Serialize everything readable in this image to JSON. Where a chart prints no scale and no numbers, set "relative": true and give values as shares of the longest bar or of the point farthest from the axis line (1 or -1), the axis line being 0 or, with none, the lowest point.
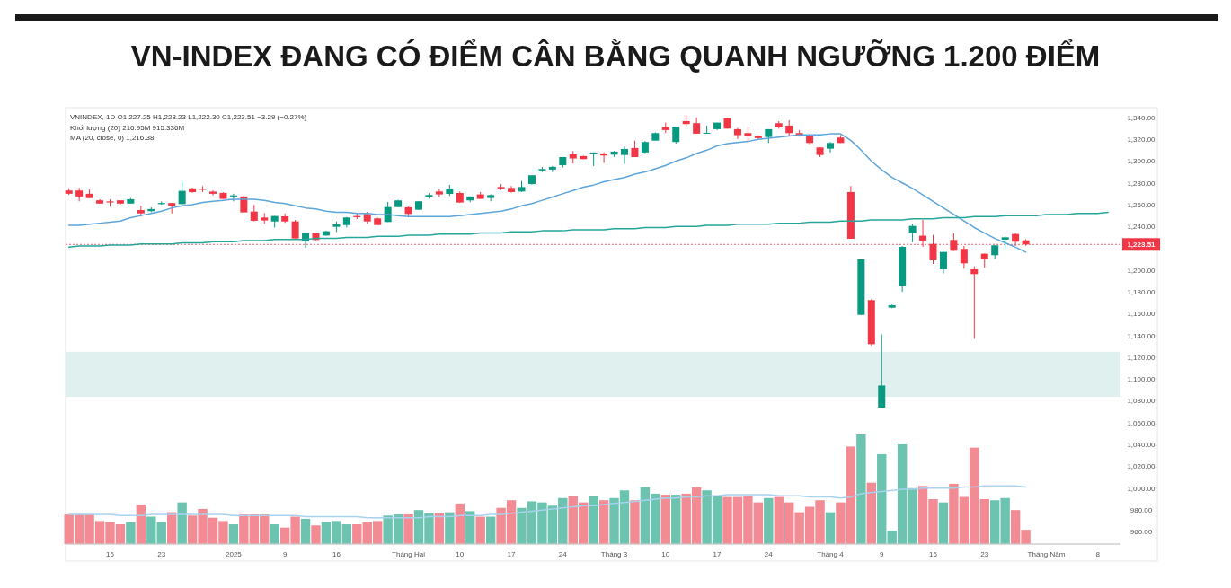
{
  "chart_data": [
    {
      "type": "candlestick",
      "title": "VN-INDEX ĐANG CÓ ĐIỂM CÂN BẰNG QUANH NGƯỠNG 1.200 ĐIỂM",
      "annotations": [
        "VNINDEX, 1D O1,227.25 H1,228.23 L1,222.30 C1,223.51 −3.29 (−0.27%)",
        "Khối lượng (20) 216.95M 915.336M",
        "MA (20, close, 0) 1,216.38"
      ],
      "categories": [
        null,
        null,
        null,
        null,
        "16",
        null,
        null,
        null,
        null,
        "23",
        null,
        null,
        null,
        null,
        null,
        null,
        "2025",
        null,
        null,
        null,
        null,
        "9",
        null,
        null,
        null,
        null,
        "16",
        null,
        null,
        null,
        null,
        null,
        null,
        "Tháng Hai",
        null,
        null,
        null,
        null,
        "10",
        null,
        null,
        null,
        null,
        "17",
        null,
        null,
        null,
        null,
        "24",
        null,
        null,
        null,
        null,
        "Tháng 3",
        null,
        null,
        null,
        null,
        "10",
        null,
        null,
        null,
        null,
        "17",
        null,
        null,
        null,
        null,
        "24",
        null,
        null,
        null,
        null,
        null,
        "Tháng 4",
        null,
        null,
        null,
        null,
        "9",
        null,
        null,
        null,
        null,
        "16",
        null,
        null,
        null,
        null,
        "23",
        null,
        null,
        null,
        null,
        null,
        "Tháng Năm",
        null,
        null,
        null,
        null,
        "8",
        null
      ],
      "ohlc": [
        [
          1273,
          1275,
          1269,
          1270
        ],
        [
          1273,
          1275.5,
          1263,
          1267.5
        ],
        [
          1270,
          1274,
          1266,
          1266
        ],
        [
          1264,
          1265,
          1261,
          1261
        ],
        [
          1263,
          1265,
          1258,
          1262
        ],
        [
          1264,
          1264,
          1260,
          1261
        ],
        [
          1261,
          1266,
          1261,
          1265
        ],
        [
          1255,
          1259,
          1249,
          1252
        ],
        [
          1254,
          1257.5,
          1253,
          1256
        ],
        [
          1260.5,
          1263,
          1260,
          1261.5
        ],
        [
          1261.5,
          1261.5,
          1252,
          1259
        ],
        [
          1260.5,
          1281.7,
          1260.5,
          1272.7
        ],
        [
          1275,
          1275.7,
          1271,
          1271.5
        ],
        [
          1274.5,
          1277,
          1271.6,
          1273.8
        ],
        [
          1272,
          1273,
          1268.5,
          1270
        ],
        [
          1270.8,
          1271.3,
          1265.3,
          1265.3
        ],
        [
          1267.5,
          1270,
          1263,
          1268.5
        ],
        [
          1267.5,
          1268.5,
          1252.9,
          1252.9
        ],
        [
          1253.7,
          1259.8,
          1244.7,
          1245.2
        ],
        [
          1248.2,
          1252.3,
          1242.5,
          1245.5
        ],
        [
          1244.6,
          1249.6,
          1239,
          1249.6
        ],
        [
          1249.3,
          1252,
          1243.3,
          1244.6
        ],
        [
          1244.6,
          1246,
          1229,
          1229
        ],
        [
          1226.2,
          1234.5,
          1220.5,
          1234.5
        ],
        [
          1233.7,
          1234.2,
          1227.3,
          1227.6
        ],
        [
          1231.7,
          1236.1,
          1231.5,
          1235.6
        ],
        [
          1239.7,
          1244.6,
          1235,
          1241.9
        ],
        [
          1241.3,
          1248.8,
          1239,
          1248.2
        ],
        [
          1249.6,
          1252.3,
          1246.8,
          1248.5
        ],
        [
          1251.5,
          1253.4,
          1242.5,
          1244.6
        ],
        [
          1247.4,
          1248,
          1241.3,
          1241.3
        ],
        [
          1244.1,
          1262.5,
          1244.1,
          1257.8
        ],
        [
          1257.8,
          1264.4,
          1257.6,
          1263.9
        ],
        [
          1257.6,
          1258.4,
          1248.8,
          1251.5
        ],
        [
          1255.4,
          1263.3,
          1255.1,
          1263.1
        ],
        [
          1267.2,
          1270.5,
          1265.5,
          1268.8
        ],
        [
          1272.1,
          1274.9,
          1267.2,
          1269.4
        ],
        [
          1269.9,
          1278.2,
          1268,
          1274.9
        ],
        [
          1270.7,
          1272.1,
          1261.7,
          1262
        ],
        [
          1263.9,
          1267.5,
          1262.2,
          1267.5
        ],
        [
          1269.4,
          1271.6,
          1265.3,
          1265.3
        ],
        [
          1266.1,
          1269.4,
          1263.1,
          1268.8
        ],
        [
          1276.2,
          1279,
          1273.5,
          1274.9
        ],
        [
          1275.4,
          1277.1,
          1271,
          1271.6
        ],
        [
          1272.1,
          1281.7,
          1271.6,
          1276.2
        ],
        [
          1279,
          1287,
          1278.2,
          1287
        ],
        [
          1291.4,
          1294.7,
          1290,
          1292.7
        ],
        [
          1292.2,
          1295.5,
          1290,
          1294.7
        ],
        [
          1296.3,
          1303.7,
          1294,
          1303.7
        ],
        [
          1306.5,
          1309.2,
          1297.7,
          1302.4
        ],
        [
          1304.6,
          1305.1,
          1301.8,
          1301.8
        ],
        [
          1306.5,
          1307.9,
          1295.5,
          1307.9
        ],
        [
          1307,
          1307.9,
          1298.2,
          1305.1
        ],
        [
          1305.9,
          1309.2,
          1303.7,
          1308.7
        ],
        [
          1305.6,
          1313.3,
          1297.4,
          1311.1
        ],
        [
          1312,
          1318.8,
          1303.7,
          1303.7
        ],
        [
          1307.9,
          1318.3,
          1307.3,
          1317.5
        ],
        [
          1318.8,
          1326.3,
          1318.8,
          1325.7
        ],
        [
          1331.2,
          1335.3,
          1325.7,
          1328.5
        ],
        [
          1317.5,
          1331.7,
          1316.1,
          1331.7
        ],
        [
          1336.7,
          1342.2,
          1332,
          1334
        ],
        [
          1334.8,
          1340,
          1325.2,
          1325.2
        ],
        [
          1325.2,
          1332.6,
          1325.2,
          1326
        ],
        [
          1329.3,
          1335.3,
          1328.5,
          1335.3
        ],
        [
          1339.5,
          1339.5,
          1329.8,
          1329.8
        ],
        [
          1329.3,
          1330.4,
          1320.3,
          1323.8
        ],
        [
          1325.7,
          1331.2,
          1316.6,
          1323
        ],
        [
          1323,
          1323.5,
          1320.2,
          1321.1
        ],
        [
          1322.1,
          1329.3,
          1316.6,
          1329.3
        ],
        [
          1334.8,
          1336.7,
          1329.8,
          1331.2
        ],
        [
          1332.6,
          1337.5,
          1323,
          1325.7
        ],
        [
          1325.7,
          1328.5,
          1322.4,
          1323
        ],
        [
          1323.8,
          1324.3,
          1315.5,
          1316.6
        ],
        [
          1312.5,
          1312.5,
          1303.7,
          1305.6
        ],
        [
          1311.4,
          1317.5,
          1307.9,
          1316.6
        ],
        [
          1321.6,
          1323.8,
          1316.6,
          1316.6
        ],
        [
          1271.6,
          1277.1,
          1228.7,
          1228.7
        ],
        [
          1158.9,
          1209.8,
          1158.9,
          1209.8
        ],
        [
          1172.4,
          1173.2,
          1130.6,
          1132
        ],
        [
          1073.7,
          1141,
          1073.7,
          1094
        ],
        [
          1165.5,
          1168.3,
          1165,
          1167.7
        ],
        [
          1185,
          1222.1,
          1180,
          1221.3
        ],
        [
          1233.7,
          1241.9,
          1225.4,
          1240.5
        ],
        [
          1231.5,
          1246,
          1221.3,
          1226.8
        ],
        [
          1224,
          1232.3,
          1205.6,
          1208.9
        ],
        [
          1200.7,
          1216.6,
          1197,
          1216.6
        ],
        [
          1227.6,
          1233.7,
          1217.7,
          1217.7
        ],
        [
          1219.4,
          1222.1,
          1201.2,
          1206.2
        ],
        [
          1200.7,
          1203.4,
          1136.9,
          1196.3
        ],
        [
          1215,
          1215,
          1202,
          1210.3
        ],
        [
          1213.6,
          1222.7,
          1210.3,
          1222.7
        ],
        [
          1227.9,
          1230.9,
          1219.9,
          1230.1
        ],
        [
          1233.1,
          1233.7,
          1222.1,
          1226
        ],
        [
          1227.25,
          1228.23,
          1222.3,
          1223.51
        ],
        null,
        null,
        null,
        null,
        null,
        null,
        null,
        null
      ],
      "colors": [
        "#f23645",
        "#f23645",
        "#f23645",
        "#f23645",
        "#f23645",
        "#f23645",
        "#089981",
        "#f23645",
        "#089981",
        "#089981",
        "#f23645",
        "#089981",
        "#f23645",
        "#f23645",
        "#f23645",
        "#f23645",
        "#089981",
        "#f23645",
        "#f23645",
        "#f23645",
        "#089981",
        "#f23645",
        "#f23645",
        "#089981",
        "#f23645",
        "#089981",
        "#089981",
        "#089981",
        "#f23645",
        "#f23645",
        "#f23645",
        "#089981",
        "#089981",
        "#f23645",
        "#089981",
        "#089981",
        "#f23645",
        "#089981",
        "#f23645",
        "#089981",
        "#f23645",
        "#089981",
        "#f23645",
        "#f23645",
        "#089981",
        "#089981",
        "#089981",
        "#089981",
        "#089981",
        "#f23645",
        "#f23645",
        "#089981",
        "#f23645",
        "#089981",
        "#089981",
        "#f23645",
        "#089981",
        "#089981",
        "#f23645",
        "#089981",
        "#f23645",
        "#f23645",
        "#089981",
        "#089981",
        "#f23645",
        "#f23645",
        "#f23645",
        "#f23645",
        "#089981",
        "#f23645",
        "#f23645",
        "#f23645",
        "#f23645",
        "#f23645",
        "#089981",
        "#f23645",
        "#f23645",
        "#089981",
        "#f23645",
        "#089981",
        "#089981",
        "#089981",
        "#089981",
        "#f23645",
        "#f23645",
        "#089981",
        "#f23645",
        "#f23645",
        "#f23645",
        "#f23645",
        "#089981",
        "#089981",
        "#f23645",
        "#f23645",
        null,
        null,
        null,
        null,
        null,
        null,
        null,
        null
      ],
      "series": [
        {
          "type": "line",
          "color": "#5da5da",
          "values": [
            1241,
            1241,
            1242,
            1243,
            1244,
            1245,
            1248,
            1250,
            1252,
            1254,
            1257,
            1259,
            1260,
            1262,
            1263,
            1264,
            1265,
            1265,
            1265,
            1264,
            1262,
            1261,
            1259,
            1257,
            1256,
            1254,
            1253,
            1253,
            1252,
            1252,
            1251,
            1251,
            1250,
            1249,
            1249,
            1249,
            1249,
            1249,
            1250,
            1251,
            1252,
            1253,
            1254,
            1256,
            1259,
            1261,
            1264,
            1267,
            1270,
            1273,
            1276,
            1278,
            1281,
            1283,
            1285,
            1288,
            1290,
            1293,
            1296,
            1300,
            1303,
            1307,
            1310,
            1314,
            1316,
            1317,
            1318,
            1320,
            1321,
            1322,
            1323,
            1324,
            1324,
            1324,
            1325,
            1325,
            1319,
            1310,
            1300,
            1292,
            1285,
            1280,
            1275,
            1269,
            1263,
            1257,
            1251,
            1245,
            1239,
            1234,
            1229,
            1225,
            1221,
            1216.38,
            null,
            null,
            null,
            null,
            null,
            null,
            null,
            null
          ]
        },
        {
          "type": "line",
          "color": "#26a69a",
          "values": [
            1221,
            1222,
            1222,
            1222,
            1223,
            1223,
            1223,
            1224,
            1224,
            1224,
            1224,
            1225,
            1225,
            1225,
            1226,
            1226,
            1226,
            1227,
            1227,
            1227,
            1228,
            1228,
            1228,
            1228,
            1229,
            1229,
            1229,
            1230,
            1230,
            1230,
            1231,
            1231,
            1231,
            1232,
            1232,
            1232,
            1233,
            1233,
            1233,
            1233,
            1234,
            1234,
            1234,
            1235,
            1235,
            1235,
            1236,
            1236,
            1236,
            1237,
            1237,
            1237,
            1237,
            1238,
            1238,
            1238,
            1239,
            1239,
            1239,
            1240,
            1240,
            1240,
            1241,
            1241,
            1241,
            1242,
            1242,
            1242,
            1242,
            1243,
            1243,
            1243,
            1244,
            1244,
            1244,
            1245,
            1245,
            1245,
            1246,
            1246,
            1246,
            1246,
            1247,
            1247,
            1247,
            1248,
            1248,
            1248,
            1249,
            1249,
            1249,
            1250,
            1250,
            1250,
            1250,
            1251,
            1251,
            1251,
            1252,
            1252,
            1252,
            1253
          ]
        }
      ],
      "ylim": [
        948.5,
        1349
      ],
      "yticks": [
        {
          "value": 960,
          "label": "960.00"
        },
        {
          "value": 980,
          "label": "980.00"
        },
        {
          "value": 1000,
          "label": "1,000.00"
        },
        {
          "value": 1020,
          "label": "1,020.00"
        },
        {
          "value": 1040,
          "label": "1,040.00"
        },
        {
          "value": 1060,
          "label": "1,060.00"
        },
        {
          "value": 1080,
          "label": "1,080.00"
        },
        {
          "value": 1100,
          "label": "1,100.00"
        },
        {
          "value": 1120,
          "label": "1,120.00"
        },
        {
          "value": 1140,
          "label": "1,140.00"
        },
        {
          "value": 1160,
          "label": "1,160.00"
        },
        {
          "value": 1180,
          "label": "1,180.00"
        },
        {
          "value": 1200,
          "label": "1,200.00"
        },
        {
          "value": 1240,
          "label": "1,240.00"
        },
        {
          "value": 1260,
          "label": "1,260.00"
        },
        {
          "value": 1280,
          "label": "1,280.00"
        },
        {
          "value": 1300,
          "label": "1,300.00"
        },
        {
          "value": 1320,
          "label": "1,320.00"
        },
        {
          "value": 1340,
          "label": "1,340.00"
        }
      ],
      "ref_lines": [
        {
          "axis": "y",
          "value": 1223.51,
          "label": "1,223.51",
          "color": "#f23645",
          "line_style": "dotted"
        }
      ],
      "bands": [
        {
          "axis": "y",
          "from": 1083.7,
          "to": 1125,
          "color": "#dff0ef"
        }
      ]
    },
    {
      "type": "bar",
      "relative": true,
      "categories": [
        null,
        null,
        null,
        null,
        null,
        null,
        null,
        null,
        null,
        null,
        null,
        null,
        null,
        null,
        null,
        null,
        null,
        null,
        null,
        null,
        null,
        null,
        null,
        null,
        null,
        null,
        null,
        null,
        null,
        null,
        null,
        null,
        null,
        null,
        null,
        null,
        null,
        null,
        null,
        null,
        null,
        null,
        null,
        null,
        null,
        null,
        null,
        null,
        null,
        null,
        null,
        null,
        null,
        null,
        null,
        null,
        null,
        null,
        null,
        null,
        null,
        null,
        null,
        null,
        null,
        null,
        null,
        null,
        null,
        null,
        null,
        null,
        null,
        null,
        null,
        null,
        null,
        null,
        null,
        null,
        null,
        null,
        null,
        null,
        null,
        null,
        null,
        null,
        null,
        null,
        null,
        null,
        null,
        null,
        null,
        null,
        null,
        null,
        null,
        null,
        null,
        null
      ],
      "series": [
        {
          "type": "bar",
          "values": [
            0.27,
            0.27,
            0.27,
            0.21,
            0.2,
            0.18,
            0.2,
            0.36,
            0.25,
            0.2,
            0.29,
            0.38,
            0.26,
            0.32,
            0.24,
            0.21,
            0.18,
            0.27,
            0.27,
            0.27,
            0.18,
            0.15,
            0.25,
            0.23,
            0.17,
            0.2,
            0.21,
            0.18,
            0.18,
            0.2,
            0.21,
            0.26,
            0.27,
            0.27,
            0.31,
            0.28,
            0.28,
            0.29,
            0.37,
            0.3,
            0.25,
            0.25,
            0.33,
            0.4,
            0.33,
            0.39,
            0.38,
            0.35,
            0.42,
            0.44,
            0.38,
            0.44,
            0.4,
            0.42,
            0.49,
            0.4,
            0.52,
            0.46,
            0.45,
            0.45,
            0.46,
            0.52,
            0.49,
            0.44,
            0.43,
            0.43,
            0.44,
            0.38,
            0.42,
            0.43,
            0.38,
            0.29,
            0.34,
            0.4,
            0.29,
            0.38,
            0.89,
            1,
            0.56,
            0.82,
            0.12,
            0.91,
            0.51,
            0.53,
            0.41,
            0.38,
            0.55,
            0.43,
            0.88,
            0.41,
            0.4,
            0.42,
            0.31,
            0.13,
            null,
            null,
            null,
            null,
            null,
            null,
            null,
            null
          ],
          "colors": [
            "#f28b93",
            "#f28b93",
            "#f28b93",
            "#f28b93",
            "#f28b93",
            "#f28b93",
            "#6cc4b0",
            "#f28b93",
            "#6cc4b0",
            "#6cc4b0",
            "#f28b93",
            "#6cc4b0",
            "#f28b93",
            "#f28b93",
            "#f28b93",
            "#f28b93",
            "#6cc4b0",
            "#f28b93",
            "#f28b93",
            "#f28b93",
            "#6cc4b0",
            "#f28b93",
            "#f28b93",
            "#6cc4b0",
            "#f28b93",
            "#6cc4b0",
            "#6cc4b0",
            "#6cc4b0",
            "#f28b93",
            "#f28b93",
            "#f28b93",
            "#6cc4b0",
            "#6cc4b0",
            "#f28b93",
            "#6cc4b0",
            "#6cc4b0",
            "#f28b93",
            "#6cc4b0",
            "#f28b93",
            "#6cc4b0",
            "#f28b93",
            "#6cc4b0",
            "#f28b93",
            "#f28b93",
            "#6cc4b0",
            "#6cc4b0",
            "#6cc4b0",
            "#6cc4b0",
            "#6cc4b0",
            "#f28b93",
            "#f28b93",
            "#6cc4b0",
            "#f28b93",
            "#6cc4b0",
            "#6cc4b0",
            "#f28b93",
            "#6cc4b0",
            "#6cc4b0",
            "#f28b93",
            "#6cc4b0",
            "#f28b93",
            "#f28b93",
            "#6cc4b0",
            "#6cc4b0",
            "#f28b93",
            "#f28b93",
            "#f28b93",
            "#f28b93",
            "#6cc4b0",
            "#f28b93",
            "#f28b93",
            "#f28b93",
            "#f28b93",
            "#f28b93",
            "#6cc4b0",
            "#f28b93",
            "#f28b93",
            "#6cc4b0",
            "#f28b93",
            "#6cc4b0",
            "#6cc4b0",
            "#6cc4b0",
            "#6cc4b0",
            "#f28b93",
            "#f28b93",
            "#6cc4b0",
            "#f28b93",
            "#f28b93",
            "#f28b93",
            "#f28b93",
            "#6cc4b0",
            "#6cc4b0",
            "#f28b93",
            "#f28b93",
            null,
            null,
            null,
            null,
            null,
            null,
            null,
            null
          ]
        },
        {
          "type": "line",
          "color": "#a9d2ee",
          "values": [
            0.27,
            0.27,
            0.27,
            0.27,
            0.27,
            0.26,
            0.26,
            0.26,
            0.27,
            0.27,
            0.27,
            0.27,
            0.27,
            0.27,
            0.27,
            0.27,
            0.26,
            0.26,
            0.26,
            0.26,
            0.26,
            0.26,
            0.26,
            0.25,
            0.25,
            0.25,
            0.25,
            0.25,
            0.25,
            0.24,
            0.24,
            0.24,
            0.24,
            0.24,
            0.24,
            0.25,
            0.25,
            0.25,
            0.26,
            0.26,
            0.26,
            0.27,
            0.27,
            0.28,
            0.29,
            0.3,
            0.31,
            0.32,
            0.33,
            0.34,
            0.35,
            0.35,
            0.36,
            0.37,
            0.38,
            0.39,
            0.4,
            0.41,
            0.42,
            0.42,
            0.43,
            0.43,
            0.44,
            0.44,
            0.45,
            0.45,
            0.45,
            0.45,
            0.45,
            0.44,
            0.44,
            0.44,
            0.43,
            0.43,
            0.43,
            0.42,
            0.43,
            0.46,
            0.47,
            0.48,
            0.49,
            0.5,
            0.5,
            0.51,
            0.51,
            0.51,
            0.51,
            0.52,
            0.52,
            0.53,
            0.53,
            0.53,
            0.53,
            0.52,
            null,
            null,
            null,
            null,
            null,
            null,
            null,
            null
          ]
        }
      ]
    }
  ]
}
